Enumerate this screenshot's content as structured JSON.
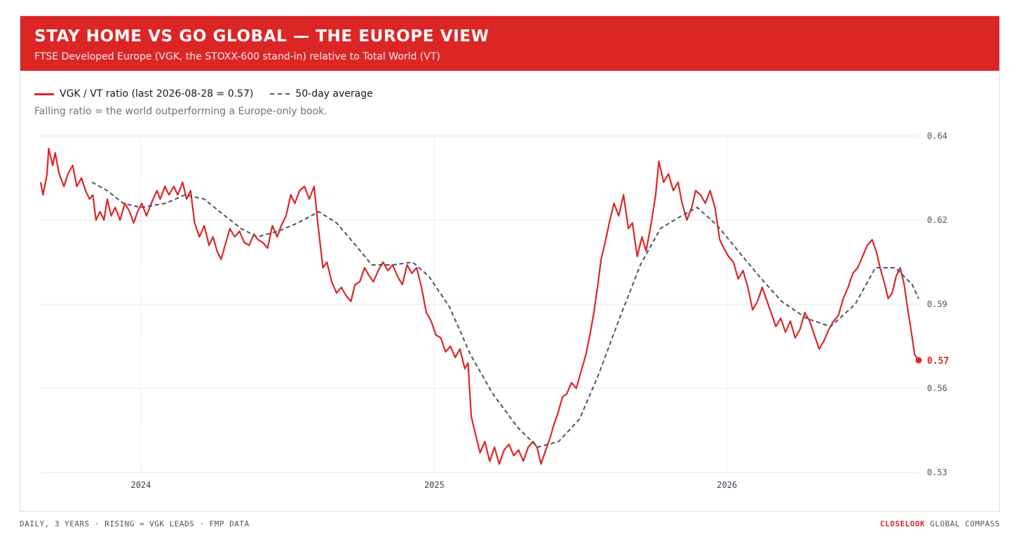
{
  "header": {
    "title": "STAY HOME VS GO GLOBAL — THE EUROPE VIEW",
    "subtitle": "FTSE Developed Europe (VGK, the STOXX-600 stand-in) relative to Total World (VT)"
  },
  "legend": {
    "ratio_label": "VGK / VT ratio (last 2026-08-28 = 0.57)",
    "avg_label": "50-day average"
  },
  "note": "Falling ratio = the world outperforming a Europe-only book.",
  "footer": {
    "left": "DAILY, 3 YEARS · RISING = VGK LEADS · FMP DATA",
    "brand": "CLOSELOOK",
    "right": "GLOBAL COMPASS"
  },
  "colors": {
    "accent": "#dc2626",
    "average": "#4b5563",
    "grid": "#e5e7eb"
  },
  "chart_data": {
    "type": "line",
    "title": "STAY HOME VS GO GLOBAL — THE EUROPE VIEW",
    "subtitle": "FTSE Developed Europe (VGK, the STOXX-600 stand-in) relative to Total World (VT)",
    "x_ticks": [
      "2024",
      "2025",
      "2026"
    ],
    "y_ticks": [
      0.53,
      0.56,
      0.59,
      0.62,
      0.64
    ],
    "y_tick_labels": [
      "0.53",
      "0.56",
      "0.59",
      "0.62",
      "0.64"
    ],
    "ylim": [
      0.525,
      0.646
    ],
    "xlim": [
      "2023-08-29",
      "2026-08-28"
    ],
    "grid": true,
    "legend_position": "top-left",
    "last_value": 0.57,
    "last_value_label": "0.57",
    "series": [
      {
        "name": "VGK / VT ratio (last 2026-08-28 = 0.57)",
        "style": "solid",
        "points": [
          [
            "2023-08-29",
            0.629
          ],
          [
            "2023-09-01",
            0.626
          ],
          [
            "2023-09-06",
            0.631
          ],
          [
            "2023-09-08",
            0.637
          ],
          [
            "2023-09-13",
            0.633
          ],
          [
            "2023-09-16",
            0.636
          ],
          [
            "2023-09-21",
            0.631
          ],
          [
            "2023-09-27",
            0.628
          ],
          [
            "2023-10-02",
            0.631
          ],
          [
            "2023-10-08",
            0.633
          ],
          [
            "2023-10-13",
            0.628
          ],
          [
            "2023-10-19",
            0.63
          ],
          [
            "2023-10-24",
            0.627
          ],
          [
            "2023-10-29",
            0.625
          ],
          [
            "2023-11-02",
            0.626
          ],
          [
            "2023-11-06",
            0.62
          ],
          [
            "2023-11-11",
            0.622
          ],
          [
            "2023-11-16",
            0.62
          ],
          [
            "2023-11-20",
            0.625
          ],
          [
            "2023-11-25",
            0.621
          ],
          [
            "2023-11-30",
            0.623
          ],
          [
            "2023-12-06",
            0.62
          ],
          [
            "2023-12-12",
            0.624
          ],
          [
            "2023-12-18",
            0.622
          ],
          [
            "2023-12-23",
            0.619
          ],
          [
            "2023-12-28",
            0.622
          ],
          [
            "2024-01-02",
            0.624
          ],
          [
            "2024-01-08",
            0.621
          ],
          [
            "2024-01-14",
            0.624
          ],
          [
            "2024-01-21",
            0.627
          ],
          [
            "2024-01-25",
            0.625
          ],
          [
            "2024-01-31",
            0.628
          ],
          [
            "2024-02-05",
            0.626
          ],
          [
            "2024-02-11",
            0.628
          ],
          [
            "2024-02-16",
            0.626
          ],
          [
            "2024-02-22",
            0.629
          ],
          [
            "2024-02-27",
            0.625
          ],
          [
            "2024-03-03",
            0.627
          ],
          [
            "2024-03-08",
            0.619
          ],
          [
            "2024-03-14",
            0.614
          ],
          [
            "2024-03-20",
            0.618
          ],
          [
            "2024-03-26",
            0.611
          ],
          [
            "2024-03-31",
            0.614
          ],
          [
            "2024-04-05",
            0.609
          ],
          [
            "2024-04-10",
            0.606
          ],
          [
            "2024-04-16",
            0.612
          ],
          [
            "2024-04-21",
            0.617
          ],
          [
            "2024-04-27",
            0.614
          ],
          [
            "2024-05-03",
            0.616
          ],
          [
            "2024-05-09",
            0.612
          ],
          [
            "2024-05-15",
            0.611
          ],
          [
            "2024-05-21",
            0.615
          ],
          [
            "2024-05-26",
            0.613
          ],
          [
            "2024-06-01",
            0.612
          ],
          [
            "2024-06-07",
            0.61
          ],
          [
            "2024-06-13",
            0.618
          ],
          [
            "2024-06-19",
            0.614
          ],
          [
            "2024-06-24",
            0.618
          ],
          [
            "2024-06-30",
            0.621
          ],
          [
            "2024-07-06",
            0.626
          ],
          [
            "2024-07-11",
            0.624
          ],
          [
            "2024-07-17",
            0.627
          ],
          [
            "2024-07-23",
            0.628
          ],
          [
            "2024-07-29",
            0.625
          ],
          [
            "2024-08-04",
            0.628
          ],
          [
            "2024-08-09",
            0.618
          ],
          [
            "2024-08-15",
            0.603
          ],
          [
            "2024-08-20",
            0.605
          ],
          [
            "2024-08-26",
            0.598
          ],
          [
            "2024-09-01",
            0.594
          ],
          [
            "2024-09-07",
            0.596
          ],
          [
            "2024-09-13",
            0.593
          ],
          [
            "2024-09-19",
            0.591
          ],
          [
            "2024-09-24",
            0.597
          ],
          [
            "2024-09-30",
            0.598
          ],
          [
            "2024-10-06",
            0.603
          ],
          [
            "2024-10-12",
            0.6
          ],
          [
            "2024-10-17",
            0.598
          ],
          [
            "2024-10-23",
            0.602
          ],
          [
            "2024-10-29",
            0.605
          ],
          [
            "2024-11-04",
            0.602
          ],
          [
            "2024-11-10",
            0.604
          ],
          [
            "2024-11-16",
            0.6
          ],
          [
            "2024-11-22",
            0.597
          ],
          [
            "2024-11-28",
            0.604
          ],
          [
            "2024-12-04",
            0.601
          ],
          [
            "2024-12-10",
            0.603
          ],
          [
            "2024-12-16",
            0.596
          ],
          [
            "2024-12-22",
            0.587
          ],
          [
            "2024-12-28",
            0.584
          ],
          [
            "2025-01-03",
            0.579
          ],
          [
            "2025-01-09",
            0.578
          ],
          [
            "2025-01-15",
            0.573
          ],
          [
            "2025-01-21",
            0.575
          ],
          [
            "2025-01-27",
            0.571
          ],
          [
            "2025-02-02",
            0.574
          ],
          [
            "2025-02-08",
            0.567
          ],
          [
            "2025-02-12",
            0.569
          ],
          [
            "2025-02-16",
            0.55
          ],
          [
            "2025-02-21",
            0.544
          ],
          [
            "2025-02-27",
            0.537
          ],
          [
            "2025-03-05",
            0.541
          ],
          [
            "2025-03-11",
            0.534
          ],
          [
            "2025-03-17",
            0.539
          ],
          [
            "2025-03-23",
            0.533
          ],
          [
            "2025-03-29",
            0.538
          ],
          [
            "2025-04-04",
            0.54
          ],
          [
            "2025-04-10",
            0.536
          ],
          [
            "2025-04-16",
            0.538
          ],
          [
            "2025-04-22",
            0.534
          ],
          [
            "2025-04-28",
            0.539
          ],
          [
            "2025-05-04",
            0.541
          ],
          [
            "2025-05-09",
            0.539
          ],
          [
            "2025-05-14",
            0.533
          ],
          [
            "2025-05-20",
            0.538
          ],
          [
            "2025-05-25",
            0.542
          ],
          [
            "2025-05-30",
            0.547
          ],
          [
            "2025-06-04",
            0.551
          ],
          [
            "2025-06-10",
            0.557
          ],
          [
            "2025-06-15",
            0.558
          ],
          [
            "2025-06-21",
            0.562
          ],
          [
            "2025-06-27",
            0.56
          ],
          [
            "2025-07-03",
            0.566
          ],
          [
            "2025-07-09",
            0.572
          ],
          [
            "2025-07-14",
            0.579
          ],
          [
            "2025-07-19",
            0.587
          ],
          [
            "2025-07-24",
            0.597
          ],
          [
            "2025-07-28",
            0.606
          ],
          [
            "2025-08-02",
            0.612
          ],
          [
            "2025-08-08",
            0.62
          ],
          [
            "2025-08-13",
            0.624
          ],
          [
            "2025-08-19",
            0.621
          ],
          [
            "2025-08-25",
            0.626
          ],
          [
            "2025-08-31",
            0.617
          ],
          [
            "2025-09-05",
            0.619
          ],
          [
            "2025-09-11",
            0.607
          ],
          [
            "2025-09-17",
            0.614
          ],
          [
            "2025-09-22",
            0.609
          ],
          [
            "2025-09-28",
            0.618
          ],
          [
            "2025-10-04",
            0.626
          ],
          [
            "2025-10-08",
            0.634
          ],
          [
            "2025-10-14",
            0.629
          ],
          [
            "2025-10-20",
            0.631
          ],
          [
            "2025-10-26",
            0.627
          ],
          [
            "2025-11-01",
            0.629
          ],
          [
            "2025-11-06",
            0.624
          ],
          [
            "2025-11-12",
            0.62
          ],
          [
            "2025-11-18",
            0.623
          ],
          [
            "2025-11-23",
            0.627
          ],
          [
            "2025-11-29",
            0.626
          ],
          [
            "2025-12-05",
            0.624
          ],
          [
            "2025-12-11",
            0.627
          ],
          [
            "2025-12-17",
            0.623
          ],
          [
            "2025-12-23",
            0.613
          ],
          [
            "2025-12-28",
            0.61
          ],
          [
            "2026-01-03",
            0.607
          ],
          [
            "2026-01-09",
            0.605
          ],
          [
            "2026-01-15",
            0.599
          ],
          [
            "2026-01-21",
            0.602
          ],
          [
            "2026-01-27",
            0.596
          ],
          [
            "2026-02-02",
            0.588
          ],
          [
            "2026-02-08",
            0.591
          ],
          [
            "2026-02-14",
            0.596
          ],
          [
            "2026-02-20",
            0.591
          ],
          [
            "2026-02-25",
            0.587
          ],
          [
            "2026-03-03",
            0.582
          ],
          [
            "2026-03-09",
            0.585
          ],
          [
            "2026-03-15",
            0.58
          ],
          [
            "2026-03-21",
            0.584
          ],
          [
            "2026-03-27",
            0.578
          ],
          [
            "2026-04-02",
            0.581
          ],
          [
            "2026-04-08",
            0.587
          ],
          [
            "2026-04-14",
            0.584
          ],
          [
            "2026-04-20",
            0.579
          ],
          [
            "2026-04-26",
            0.574
          ],
          [
            "2026-05-02",
            0.577
          ],
          [
            "2026-05-08",
            0.581
          ],
          [
            "2026-05-14",
            0.584
          ],
          [
            "2026-05-20",
            0.586
          ],
          [
            "2026-05-26",
            0.592
          ],
          [
            "2026-06-01",
            0.596
          ],
          [
            "2026-06-07",
            0.601
          ],
          [
            "2026-06-13",
            0.603
          ],
          [
            "2026-06-19",
            0.607
          ],
          [
            "2026-06-25",
            0.611
          ],
          [
            "2026-07-01",
            0.613
          ],
          [
            "2026-07-06",
            0.609
          ],
          [
            "2026-07-11",
            0.603
          ],
          [
            "2026-07-16",
            0.598
          ],
          [
            "2026-07-21",
            0.592
          ],
          [
            "2026-07-26",
            0.594
          ],
          [
            "2026-07-31",
            0.6
          ],
          [
            "2026-08-05",
            0.603
          ],
          [
            "2026-08-10",
            0.597
          ],
          [
            "2026-08-14",
            0.589
          ],
          [
            "2026-08-19",
            0.58
          ],
          [
            "2026-08-23",
            0.572
          ],
          [
            "2026-08-28",
            0.57
          ]
        ]
      },
      {
        "name": "50-day average",
        "style": "dashed",
        "points": [
          [
            "2023-11-01",
            0.629
          ],
          [
            "2023-11-20",
            0.627
          ],
          [
            "2023-12-10",
            0.624
          ],
          [
            "2024-01-01",
            0.623
          ],
          [
            "2024-02-01",
            0.624
          ],
          [
            "2024-02-25",
            0.626
          ],
          [
            "2024-03-20",
            0.625
          ],
          [
            "2024-04-15",
            0.621
          ],
          [
            "2024-05-05",
            0.617
          ],
          [
            "2024-05-25",
            0.614
          ],
          [
            "2024-06-20",
            0.616
          ],
          [
            "2024-07-15",
            0.619
          ],
          [
            "2024-08-10",
            0.622
          ],
          [
            "2024-09-01",
            0.619
          ],
          [
            "2024-09-25",
            0.611
          ],
          [
            "2024-10-15",
            0.604
          ],
          [
            "2024-11-10",
            0.604
          ],
          [
            "2024-12-05",
            0.605
          ],
          [
            "2024-12-25",
            0.6
          ],
          [
            "2025-01-20",
            0.589
          ],
          [
            "2025-02-15",
            0.572
          ],
          [
            "2025-03-15",
            0.558
          ],
          [
            "2025-04-15",
            0.546
          ],
          [
            "2025-05-10",
            0.539
          ],
          [
            "2025-06-05",
            0.541
          ],
          [
            "2025-07-01",
            0.549
          ],
          [
            "2025-07-25",
            0.565
          ],
          [
            "2025-08-20",
            0.585
          ],
          [
            "2025-09-15",
            0.604
          ],
          [
            "2025-10-10",
            0.617
          ],
          [
            "2025-11-05",
            0.621
          ],
          [
            "2025-11-25",
            0.623
          ],
          [
            "2025-12-20",
            0.618
          ],
          [
            "2026-01-15",
            0.609
          ],
          [
            "2026-02-10",
            0.6
          ],
          [
            "2026-03-10",
            0.591
          ],
          [
            "2026-04-10",
            0.585
          ],
          [
            "2026-05-10",
            0.582
          ],
          [
            "2026-06-10",
            0.59
          ],
          [
            "2026-07-05",
            0.603
          ],
          [
            "2026-07-30",
            0.603
          ],
          [
            "2026-08-20",
            0.597
          ],
          [
            "2026-08-28",
            0.592
          ]
        ]
      }
    ]
  }
}
